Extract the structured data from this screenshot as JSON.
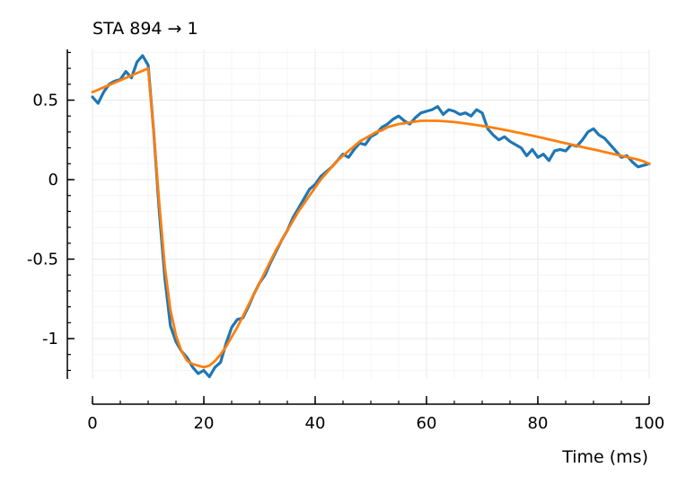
{
  "chart_data": {
    "type": "line",
    "title": "STA 894 → 1",
    "xlabel": "Time (ms)",
    "ylabel": "",
    "xlim": [
      0,
      100
    ],
    "ylim": [
      -1.25,
      0.8
    ],
    "xticks": [
      0,
      20,
      40,
      60,
      80,
      100
    ],
    "xtick_labels": [
      "0",
      "20",
      "40",
      "60",
      "80",
      "100"
    ],
    "yticks": [
      0.5,
      0,
      -0.5,
      -1
    ],
    "ytick_labels": [
      "0.5",
      "0",
      "-0.5",
      "-1"
    ],
    "grid": true,
    "legend": "none",
    "series": [
      {
        "color": "#1f77b4",
        "x": [
          0,
          1,
          2,
          3,
          4,
          5,
          6,
          7,
          8,
          9,
          10,
          11,
          12,
          13,
          14,
          15,
          16,
          17,
          18,
          19,
          20,
          21,
          22,
          23,
          24,
          25,
          26,
          27,
          28,
          29,
          30,
          31,
          32,
          33,
          34,
          35,
          36,
          37,
          38,
          39,
          40,
          41,
          42,
          43,
          44,
          45,
          46,
          47,
          48,
          49,
          50,
          51,
          52,
          53,
          54,
          55,
          56,
          57,
          58,
          59,
          60,
          61,
          62,
          63,
          64,
          65,
          66,
          67,
          68,
          69,
          70,
          71,
          72,
          73,
          74,
          75,
          76,
          77,
          78,
          79,
          80,
          81,
          82,
          83,
          84,
          85,
          86,
          87,
          88,
          89,
          90,
          91,
          92,
          93,
          94,
          95,
          96,
          97,
          98,
          99,
          100
        ],
        "values": [
          0.52,
          0.48,
          0.55,
          0.6,
          0.62,
          0.63,
          0.68,
          0.64,
          0.74,
          0.78,
          0.72,
          0.3,
          -0.2,
          -0.62,
          -0.92,
          -1.02,
          -1.08,
          -1.12,
          -1.18,
          -1.22,
          -1.2,
          -1.24,
          -1.18,
          -1.15,
          -1.03,
          -0.93,
          -0.88,
          -0.87,
          -0.8,
          -0.72,
          -0.65,
          -0.6,
          -0.52,
          -0.45,
          -0.38,
          -0.32,
          -0.24,
          -0.18,
          -0.12,
          -0.06,
          -0.03,
          0.02,
          0.05,
          0.08,
          0.12,
          0.16,
          0.14,
          0.19,
          0.23,
          0.22,
          0.27,
          0.29,
          0.33,
          0.35,
          0.38,
          0.4,
          0.37,
          0.35,
          0.39,
          0.42,
          0.43,
          0.44,
          0.46,
          0.41,
          0.44,
          0.43,
          0.41,
          0.42,
          0.4,
          0.44,
          0.42,
          0.32,
          0.28,
          0.25,
          0.27,
          0.24,
          0.22,
          0.2,
          0.15,
          0.19,
          0.14,
          0.16,
          0.12,
          0.18,
          0.19,
          0.18,
          0.22,
          0.21,
          0.25,
          0.3,
          0.32,
          0.28,
          0.26,
          0.22,
          0.18,
          0.14,
          0.15,
          0.11,
          0.08,
          0.09,
          0.1
        ]
      },
      {
        "color": "#ff7f0e",
        "x": [
          0,
          1,
          2,
          3,
          4,
          5,
          6,
          7,
          8,
          9,
          10,
          11,
          12,
          13,
          14,
          15,
          16,
          17,
          18,
          19,
          20,
          21,
          22,
          23,
          24,
          25,
          26,
          27,
          28,
          29,
          30,
          31,
          32,
          33,
          34,
          35,
          36,
          37,
          38,
          39,
          40,
          41,
          42,
          43,
          44,
          45,
          46,
          47,
          48,
          49,
          50,
          51,
          52,
          53,
          54,
          55,
          56,
          57,
          58,
          59,
          60,
          61,
          62,
          63,
          64,
          65,
          66,
          67,
          68,
          69,
          70,
          71,
          72,
          73,
          74,
          75,
          76,
          77,
          78,
          79,
          80,
          81,
          82,
          83,
          84,
          85,
          86,
          87,
          88,
          89,
          90,
          91,
          92,
          93,
          94,
          95,
          96,
          97,
          98,
          99,
          100
        ],
        "values": [
          0.55,
          0.565,
          0.58,
          0.595,
          0.61,
          0.625,
          0.64,
          0.655,
          0.67,
          0.685,
          0.7,
          0.3,
          -0.15,
          -0.55,
          -0.82,
          -0.98,
          -1.08,
          -1.14,
          -1.16,
          -1.17,
          -1.18,
          -1.17,
          -1.14,
          -1.1,
          -1.05,
          -0.99,
          -0.93,
          -0.86,
          -0.79,
          -0.72,
          -0.65,
          -0.58,
          -0.51,
          -0.44,
          -0.38,
          -0.32,
          -0.26,
          -0.2,
          -0.15,
          -0.1,
          -0.05,
          0.0,
          0.04,
          0.08,
          0.12,
          0.15,
          0.18,
          0.21,
          0.24,
          0.26,
          0.28,
          0.3,
          0.31,
          0.33,
          0.34,
          0.35,
          0.355,
          0.36,
          0.365,
          0.37,
          0.37,
          0.37,
          0.37,
          0.368,
          0.365,
          0.362,
          0.358,
          0.353,
          0.348,
          0.343,
          0.338,
          0.332,
          0.326,
          0.32,
          0.313,
          0.306,
          0.299,
          0.292,
          0.284,
          0.277,
          0.269,
          0.261,
          0.253,
          0.245,
          0.237,
          0.229,
          0.221,
          0.213,
          0.205,
          0.197,
          0.19,
          0.182,
          0.174,
          0.166,
          0.158,
          0.15,
          0.142,
          0.134,
          0.126,
          0.115,
          0.1
        ]
      }
    ]
  }
}
